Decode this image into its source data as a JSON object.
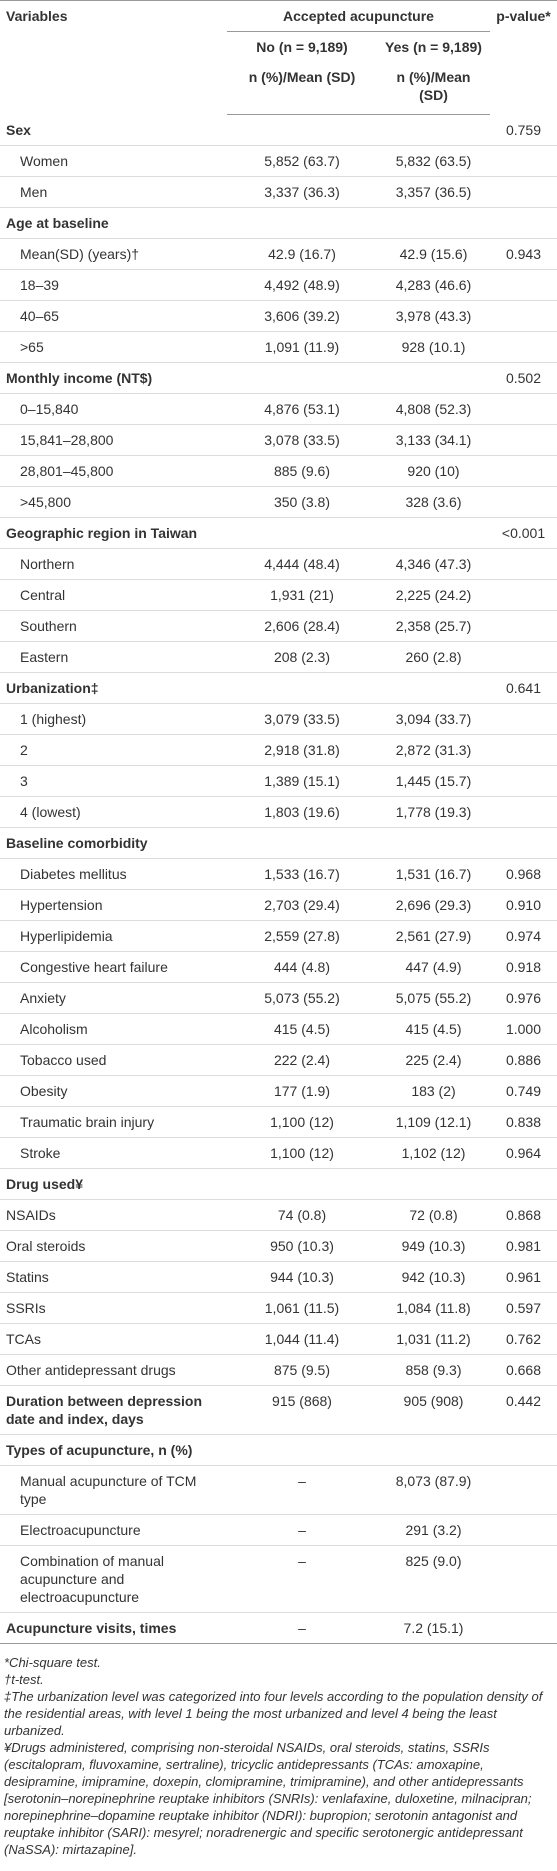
{
  "header": {
    "variables": "Variables",
    "group": "Accepted acupuncture",
    "p": "p-value*",
    "no": "No (n = 9,189)",
    "yes": "Yes (n = 9,189)",
    "unit_no": "n (%)/Mean (SD)",
    "unit_yes": "n (%)/Mean (SD)"
  },
  "table": {
    "rows": [
      {
        "cells": [
          "Sex",
          null,
          null,
          "0.759"
        ],
        "bold": true
      },
      {
        "cells": [
          "Women",
          "5,852 (63.7)",
          "5,832 (63.5)",
          null
        ],
        "indent": true
      },
      {
        "cells": [
          "Men",
          "3,337 (36.3)",
          "3,357 (36.5)",
          null
        ],
        "indent": true
      },
      {
        "cells": [
          "Age at baseline",
          null,
          null,
          null
        ],
        "bold": true
      },
      {
        "cells": [
          "Mean(SD) (years)†",
          "42.9 (16.7)",
          "42.9 (15.6)",
          "0.943"
        ],
        "indent": true
      },
      {
        "cells": [
          "18–39",
          "4,492 (48.9)",
          "4,283 (46.6)",
          null
        ],
        "indent": true
      },
      {
        "cells": [
          "40–65",
          "3,606 (39.2)",
          "3,978 (43.3)",
          null
        ],
        "indent": true
      },
      {
        "cells": [
          ">65",
          "1,091 (11.9)",
          "928 (10.1)",
          null
        ],
        "indent": true
      },
      {
        "cells": [
          "Monthly income (NT$)",
          null,
          null,
          "0.502"
        ],
        "bold": true
      },
      {
        "cells": [
          "0–15,840",
          "4,876 (53.1)",
          "4,808 (52.3)",
          null
        ],
        "indent": true
      },
      {
        "cells": [
          "15,841–28,800",
          "3,078 (33.5)",
          "3,133 (34.1)",
          null
        ],
        "indent": true
      },
      {
        "cells": [
          "28,801–45,800",
          "885 (9.6)",
          "920 (10)",
          null
        ],
        "indent": true
      },
      {
        "cells": [
          ">45,800",
          "350 (3.8)",
          "328 (3.6)",
          null
        ],
        "indent": true
      },
      {
        "cells": [
          "Geographic region in Taiwan",
          null,
          null,
          "<0.001"
        ],
        "bold": true
      },
      {
        "cells": [
          "Northern",
          "4,444 (48.4)",
          "4,346 (47.3)",
          null
        ],
        "indent": true
      },
      {
        "cells": [
          "Central",
          "1,931 (21)",
          "2,225 (24.2)",
          null
        ],
        "indent": true
      },
      {
        "cells": [
          "Southern",
          "2,606 (28.4)",
          "2,358 (25.7)",
          null
        ],
        "indent": true
      },
      {
        "cells": [
          "Eastern",
          "208 (2.3)",
          "260 (2.8)",
          null
        ],
        "indent": true
      },
      {
        "cells": [
          "Urbanization‡",
          null,
          null,
          "0.641"
        ],
        "bold": true
      },
      {
        "cells": [
          "1 (highest)",
          "3,079 (33.5)",
          "3,094 (33.7)",
          null
        ],
        "indent": true
      },
      {
        "cells": [
          "2",
          "2,918 (31.8)",
          "2,872 (31.3)",
          null
        ],
        "indent": true
      },
      {
        "cells": [
          "3",
          "1,389 (15.1)",
          "1,445 (15.7)",
          null
        ],
        "indent": true
      },
      {
        "cells": [
          "4 (lowest)",
          "1,803 (19.6)",
          "1,778 (19.3)",
          null
        ],
        "indent": true
      },
      {
        "cells": [
          "Baseline comorbidity",
          null,
          null,
          null
        ],
        "bold": true
      },
      {
        "cells": [
          "Diabetes mellitus",
          "1,533 (16.7)",
          "1,531 (16.7)",
          "0.968"
        ],
        "indent": true
      },
      {
        "cells": [
          "Hypertension",
          "2,703 (29.4)",
          "2,696 (29.3)",
          "0.910"
        ],
        "indent": true
      },
      {
        "cells": [
          "Hyperlipidemia",
          "2,559 (27.8)",
          "2,561 (27.9)",
          "0.974"
        ],
        "indent": true
      },
      {
        "cells": [
          "Congestive heart failure",
          "444 (4.8)",
          "447 (4.9)",
          "0.918"
        ],
        "indent": true
      },
      {
        "cells": [
          "Anxiety",
          "5,073 (55.2)",
          "5,075 (55.2)",
          "0.976"
        ],
        "indent": true
      },
      {
        "cells": [
          "Alcoholism",
          "415 (4.5)",
          "415 (4.5)",
          "1.000"
        ],
        "indent": true
      },
      {
        "cells": [
          "Tobacco used",
          "222 (2.4)",
          "225 (2.4)",
          "0.886"
        ],
        "indent": true
      },
      {
        "cells": [
          "Obesity",
          "177 (1.9)",
          "183 (2)",
          "0.749"
        ],
        "indent": true
      },
      {
        "cells": [
          "Traumatic brain injury",
          "1,100 (12)",
          "1,109 (12.1)",
          "0.838"
        ],
        "indent": true
      },
      {
        "cells": [
          "Stroke",
          "1,100 (12)",
          "1,102 (12)",
          "0.964"
        ],
        "indent": true
      },
      {
        "cells": [
          "Drug used¥",
          null,
          null,
          null
        ],
        "bold": true
      },
      {
        "cells": [
          "NSAIDs",
          "74 (0.8)",
          "72 (0.8)",
          "0.868"
        ]
      },
      {
        "cells": [
          "Oral steroids",
          "950 (10.3)",
          "949 (10.3)",
          "0.981"
        ]
      },
      {
        "cells": [
          "Statins",
          "944 (10.3)",
          "942 (10.3)",
          "0.961"
        ]
      },
      {
        "cells": [
          "SSRIs",
          "1,061 (11.5)",
          "1,084 (11.8)",
          "0.597"
        ]
      },
      {
        "cells": [
          "TCAs",
          "1,044 (11.4)",
          "1,031 (11.2)",
          "0.762"
        ]
      },
      {
        "cells": [
          "Other antidepressant drugs",
          "875 (9.5)",
          "858 (9.3)",
          "0.668"
        ]
      },
      {
        "cells": [
          "Duration between depression date and index, days",
          "915 (868)",
          "905 (908)",
          "0.442"
        ],
        "bold": true
      },
      {
        "cells": [
          "Types of acupuncture, n (%)",
          null,
          null,
          null
        ],
        "bold": true
      },
      {
        "cells": [
          "Manual acupuncture of TCM type",
          "–",
          "8,073 (87.9)",
          null
        ],
        "indent": true
      },
      {
        "cells": [
          "Electroacupuncture",
          "–",
          "291 (3.2)",
          null
        ],
        "indent": true
      },
      {
        "cells": [
          "Combination of manual acupuncture and electroacupuncture",
          "–",
          "825 (9.0)",
          null
        ],
        "indent": true
      },
      {
        "cells": [
          "Acupuncture visits, times",
          "–",
          "7.2 (15.1)",
          null
        ],
        "bold": true
      }
    ]
  },
  "footnotes": [
    "*Chi-square test.",
    "†t-test.",
    "‡The urbanization level was categorized into four levels according to the population density of the residential areas, with level 1 being the most urbanized and level 4 being the least urbanized.",
    "¥Drugs administered, comprising non-steroidal NSAIDs, oral steroids, statins, SSRIs (escitalopram, fluvoxamine, sertraline), tricyclic antidepressants (TCAs: amoxapine, desipramine, imipramine, doxepin, clomipramine, trimipramine), and other antidepressants [serotonin–norepinephrine reuptake inhibitors (SNRIs): venlafaxine, duloxetine, milnacipran; norepinephrine–dopamine reuptake inhibitor (NDRI): bupropion; serotonin antagonist and reuptake inhibitor (SARI): mesyrel; noradrenergic and specific serotonergic antidepressant (NaSSA): mirtazapine]."
  ]
}
